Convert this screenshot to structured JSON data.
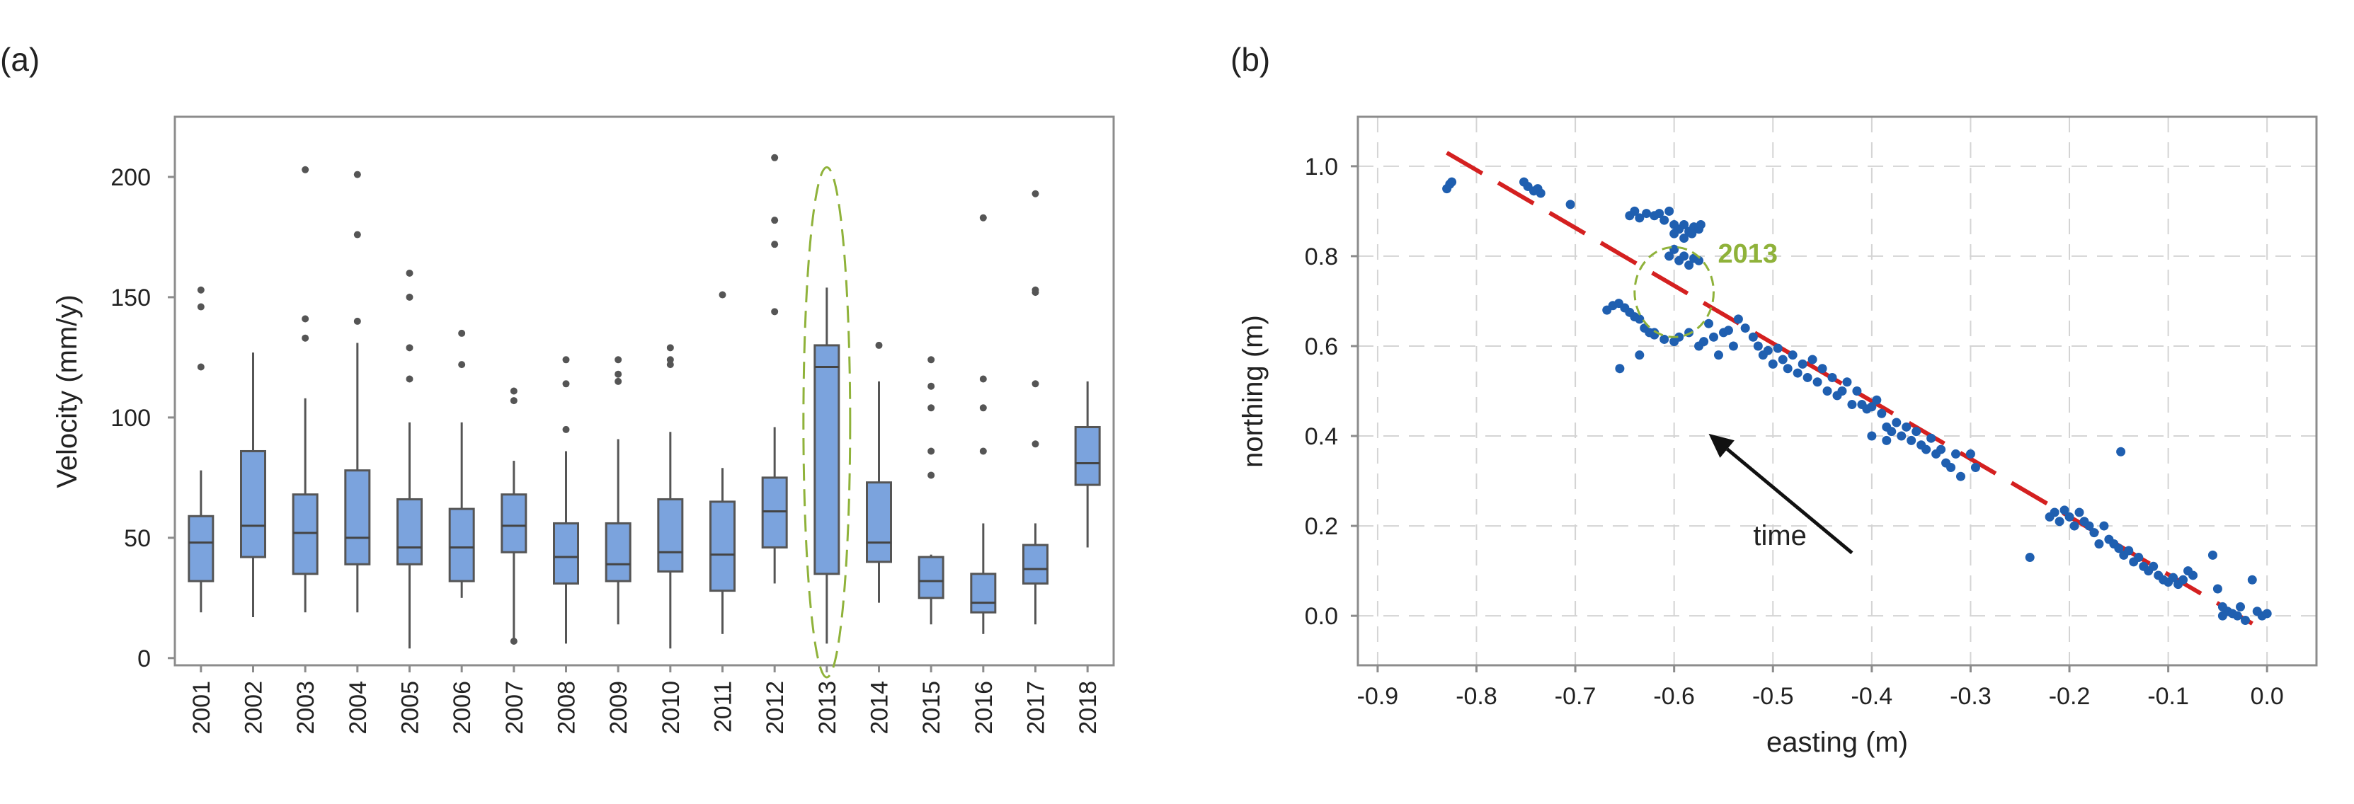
{
  "chart_data": [
    {
      "panel_label": "(a)",
      "type": "box",
      "ylabel": "Velocity (mm/y)",
      "xlabel": "",
      "ylim": [
        -3,
        225
      ],
      "yticks": [
        0,
        50,
        100,
        150,
        200
      ],
      "grid": false,
      "box_color": "#7ba3dd",
      "highlight": {
        "category": "2013",
        "color": "#8fb23a",
        "style": "dashed ellipse"
      },
      "categories": [
        "2001",
        "2002",
        "2003",
        "2004",
        "2005",
        "2006",
        "2007",
        "2008",
        "2009",
        "2010",
        "2011",
        "2012",
        "2013",
        "2014",
        "2015",
        "2016",
        "2017",
        "2018"
      ],
      "boxes": [
        {
          "category": "2001",
          "whisker_low": 19,
          "q1": 32,
          "median": 48,
          "q3": 59,
          "whisker_high": 78,
          "outliers": [
            121,
            146,
            153
          ]
        },
        {
          "category": "2002",
          "whisker_low": 17,
          "q1": 42,
          "median": 55,
          "q3": 86,
          "whisker_high": 127,
          "outliers": []
        },
        {
          "category": "2003",
          "whisker_low": 19,
          "q1": 35,
          "median": 52,
          "q3": 68,
          "whisker_high": 108,
          "outliers": [
            133,
            141,
            203
          ]
        },
        {
          "category": "2004",
          "whisker_low": 19,
          "q1": 39,
          "median": 50,
          "q3": 78,
          "whisker_high": 131,
          "outliers": [
            140,
            176,
            201
          ]
        },
        {
          "category": "2005",
          "whisker_low": 4,
          "q1": 39,
          "median": 46,
          "q3": 66,
          "whisker_high": 98,
          "outliers": [
            116,
            129,
            150,
            160
          ]
        },
        {
          "category": "2006",
          "whisker_low": 25,
          "q1": 32,
          "median": 46,
          "q3": 62,
          "whisker_high": 98,
          "outliers": [
            122,
            135
          ]
        },
        {
          "category": "2007",
          "whisker_low": 7,
          "q1": 44,
          "median": 55,
          "q3": 68,
          "whisker_high": 82,
          "outliers": [
            7,
            107,
            111
          ]
        },
        {
          "category": "2008",
          "whisker_low": 6,
          "q1": 31,
          "median": 42,
          "q3": 56,
          "whisker_high": 86,
          "outliers": [
            95,
            114,
            124
          ]
        },
        {
          "category": "2009",
          "whisker_low": 14,
          "q1": 32,
          "median": 39,
          "q3": 56,
          "whisker_high": 91,
          "outliers": [
            115,
            118,
            124
          ]
        },
        {
          "category": "2010",
          "whisker_low": 4,
          "q1": 36,
          "median": 44,
          "q3": 66,
          "whisker_high": 94,
          "outliers": [
            122,
            124,
            129
          ]
        },
        {
          "category": "2011",
          "whisker_low": 10,
          "q1": 28,
          "median": 43,
          "q3": 65,
          "whisker_high": 79,
          "outliers": [
            151
          ]
        },
        {
          "category": "2012",
          "whisker_low": 31,
          "q1": 46,
          "median": 61,
          "q3": 75,
          "whisker_high": 96,
          "outliers": [
            144,
            172,
            182,
            208
          ]
        },
        {
          "category": "2013",
          "whisker_low": 6,
          "q1": 35,
          "median": 121,
          "q3": 130,
          "whisker_high": 154,
          "outliers": []
        },
        {
          "category": "2014",
          "whisker_low": 23,
          "q1": 40,
          "median": 48,
          "q3": 73,
          "whisker_high": 115,
          "outliers": [
            130
          ]
        },
        {
          "category": "2015",
          "whisker_low": 14,
          "q1": 25,
          "median": 32,
          "q3": 42,
          "whisker_high": 43,
          "outliers": [
            76,
            86,
            104,
            113,
            124
          ]
        },
        {
          "category": "2016",
          "whisker_low": 10,
          "q1": 19,
          "median": 23,
          "q3": 35,
          "whisker_high": 56,
          "outliers": [
            86,
            104,
            116,
            183
          ]
        },
        {
          "category": "2017",
          "whisker_low": 14,
          "q1": 31,
          "median": 37,
          "q3": 47,
          "whisker_high": 56,
          "outliers": [
            89,
            114,
            152,
            153,
            193
          ]
        },
        {
          "category": "2018",
          "whisker_low": 46,
          "q1": 72,
          "median": 81,
          "q3": 96,
          "whisker_high": 115,
          "outliers": []
        }
      ]
    },
    {
      "panel_label": "(b)",
      "type": "scatter",
      "xlabel": "easting (m)",
      "ylabel": "northing (m)",
      "xlim": [
        -0.92,
        0.05
      ],
      "ylim": [
        -0.11,
        1.11
      ],
      "xticks": [
        -0.9,
        -0.8,
        -0.7,
        -0.6,
        -0.5,
        -0.4,
        -0.3,
        -0.2,
        -0.1,
        0.0
      ],
      "xtick_labels": [
        "-0.9",
        "-0.8",
        "-0.7",
        "-0.6",
        "-0.5",
        "-0.4",
        "-0.3",
        "-0.2",
        "-0.1",
        "0.0"
      ],
      "yticks": [
        0.0,
        0.2,
        0.4,
        0.6,
        0.8,
        1.0
      ],
      "ytick_labels": [
        "0.0",
        "0.2",
        "0.4",
        "0.6",
        "0.8",
        "1.0"
      ],
      "grid": true,
      "point_color": "#1f5fb0",
      "trend_line": {
        "color": "#d42020",
        "style": "dashed",
        "x": [
          -0.83,
          -0.005
        ],
        "y": [
          1.03,
          -0.03
        ]
      },
      "highlight": {
        "label": "2013",
        "color": "#8fb23a",
        "center": [
          -0.6,
          0.72
        ],
        "radius_x": 0.04,
        "radius_y": 0.1
      },
      "annotation": {
        "text": "time",
        "arrow_from": [
          -0.42,
          0.14
        ],
        "arrow_to": [
          -0.565,
          0.405
        ],
        "text_at": [
          -0.52,
          0.18
        ]
      },
      "points": [
        [
          -0.83,
          0.95
        ],
        [
          -0.827,
          0.96
        ],
        [
          -0.825,
          0.965
        ],
        [
          -0.752,
          0.965
        ],
        [
          -0.748,
          0.955
        ],
        [
          -0.742,
          0.945
        ],
        [
          -0.738,
          0.95
        ],
        [
          -0.735,
          0.94
        ],
        [
          -0.705,
          0.915
        ],
        [
          -0.645,
          0.89
        ],
        [
          -0.64,
          0.9
        ],
        [
          -0.635,
          0.885
        ],
        [
          -0.628,
          0.895
        ],
        [
          -0.62,
          0.89
        ],
        [
          -0.615,
          0.895
        ],
        [
          -0.61,
          0.88
        ],
        [
          -0.605,
          0.9
        ],
        [
          -0.6,
          0.87
        ],
        [
          -0.595,
          0.86
        ],
        [
          -0.59,
          0.87
        ],
        [
          -0.585,
          0.855
        ],
        [
          -0.58,
          0.865
        ],
        [
          -0.575,
          0.86
        ],
        [
          -0.573,
          0.87
        ],
        [
          -0.6,
          0.85
        ],
        [
          -0.59,
          0.84
        ],
        [
          -0.582,
          0.85
        ],
        [
          -0.605,
          0.8
        ],
        [
          -0.6,
          0.815
        ],
        [
          -0.595,
          0.79
        ],
        [
          -0.59,
          0.8
        ],
        [
          -0.585,
          0.78
        ],
        [
          -0.58,
          0.795
        ],
        [
          -0.575,
          0.79
        ],
        [
          -0.668,
          0.68
        ],
        [
          -0.662,
          0.69
        ],
        [
          -0.656,
          0.695
        ],
        [
          -0.65,
          0.685
        ],
        [
          -0.645,
          0.675
        ],
        [
          -0.64,
          0.665
        ],
        [
          -0.635,
          0.66
        ],
        [
          -0.63,
          0.64
        ],
        [
          -0.625,
          0.63
        ],
        [
          -0.62,
          0.625
        ],
        [
          -0.61,
          0.615
        ],
        [
          -0.6,
          0.61
        ],
        [
          -0.595,
          0.62
        ],
        [
          -0.585,
          0.63
        ],
        [
          -0.575,
          0.6
        ],
        [
          -0.57,
          0.61
        ],
        [
          -0.565,
          0.65
        ],
        [
          -0.56,
          0.62
        ],
        [
          -0.555,
          0.58
        ],
        [
          -0.55,
          0.63
        ],
        [
          -0.545,
          0.635
        ],
        [
          -0.54,
          0.6
        ],
        [
          -0.535,
          0.66
        ],
        [
          -0.528,
          0.64
        ],
        [
          -0.52,
          0.62
        ],
        [
          -0.515,
          0.6
        ],
        [
          -0.51,
          0.58
        ],
        [
          -0.505,
          0.59
        ],
        [
          -0.5,
          0.56
        ],
        [
          -0.495,
          0.595
        ],
        [
          -0.49,
          0.57
        ],
        [
          -0.485,
          0.55
        ],
        [
          -0.48,
          0.58
        ],
        [
          -0.475,
          0.54
        ],
        [
          -0.47,
          0.56
        ],
        [
          -0.465,
          0.53
        ],
        [
          -0.46,
          0.57
        ],
        [
          -0.455,
          0.52
        ],
        [
          -0.45,
          0.55
        ],
        [
          -0.445,
          0.5
        ],
        [
          -0.44,
          0.53
        ],
        [
          -0.435,
          0.49
        ],
        [
          -0.43,
          0.5
        ],
        [
          -0.425,
          0.52
        ],
        [
          -0.42,
          0.47
        ],
        [
          -0.415,
          0.5
        ],
        [
          -0.41,
          0.47
        ],
        [
          -0.405,
          0.46
        ],
        [
          -0.4,
          0.465
        ],
        [
          -0.395,
          0.48
        ],
        [
          -0.39,
          0.45
        ],
        [
          -0.385,
          0.42
        ],
        [
          -0.38,
          0.41
        ],
        [
          -0.375,
          0.43
        ],
        [
          -0.37,
          0.4
        ],
        [
          -0.365,
          0.42
        ],
        [
          -0.36,
          0.39
        ],
        [
          -0.355,
          0.41
        ],
        [
          -0.35,
          0.38
        ],
        [
          -0.345,
          0.37
        ],
        [
          -0.34,
          0.395
        ],
        [
          -0.335,
          0.36
        ],
        [
          -0.33,
          0.37
        ],
        [
          -0.325,
          0.34
        ],
        [
          -0.32,
          0.33
        ],
        [
          -0.315,
          0.36
        ],
        [
          -0.31,
          0.31
        ],
        [
          -0.3,
          0.36
        ],
        [
          -0.295,
          0.33
        ],
        [
          -0.4,
          0.4
        ],
        [
          -0.385,
          0.39
        ],
        [
          -0.635,
          0.58
        ],
        [
          -0.62,
          0.63
        ],
        [
          -0.655,
          0.55
        ],
        [
          -0.24,
          0.13
        ],
        [
          -0.22,
          0.22
        ],
        [
          -0.215,
          0.23
        ],
        [
          -0.21,
          0.21
        ],
        [
          -0.205,
          0.235
        ],
        [
          -0.2,
          0.22
        ],
        [
          -0.195,
          0.2
        ],
        [
          -0.19,
          0.23
        ],
        [
          -0.185,
          0.21
        ],
        [
          -0.18,
          0.2
        ],
        [
          -0.175,
          0.185
        ],
        [
          -0.17,
          0.16
        ],
        [
          -0.165,
          0.2
        ],
        [
          -0.16,
          0.17
        ],
        [
          -0.155,
          0.16
        ],
        [
          -0.15,
          0.15
        ],
        [
          -0.148,
          0.365
        ],
        [
          -0.145,
          0.135
        ],
        [
          -0.14,
          0.145
        ],
        [
          -0.135,
          0.12
        ],
        [
          -0.13,
          0.13
        ],
        [
          -0.125,
          0.11
        ],
        [
          -0.12,
          0.1
        ],
        [
          -0.115,
          0.11
        ],
        [
          -0.11,
          0.09
        ],
        [
          -0.105,
          0.08
        ],
        [
          -0.1,
          0.075
        ],
        [
          -0.095,
          0.085
        ],
        [
          -0.09,
          0.07
        ],
        [
          -0.085,
          0.08
        ],
        [
          -0.08,
          0.1
        ],
        [
          -0.075,
          0.09
        ],
        [
          -0.055,
          0.135
        ],
        [
          -0.05,
          0.06
        ],
        [
          -0.045,
          0.02
        ],
        [
          -0.04,
          0.01
        ],
        [
          -0.035,
          0.005
        ],
        [
          -0.03,
          0.0
        ],
        [
          -0.027,
          0.02
        ],
        [
          -0.022,
          -0.01
        ],
        [
          -0.015,
          0.08
        ],
        [
          -0.01,
          0.01
        ],
        [
          -0.005,
          0.0
        ],
        [
          0.0,
          0.005
        ],
        [
          -0.045,
          0.0
        ]
      ]
    }
  ]
}
